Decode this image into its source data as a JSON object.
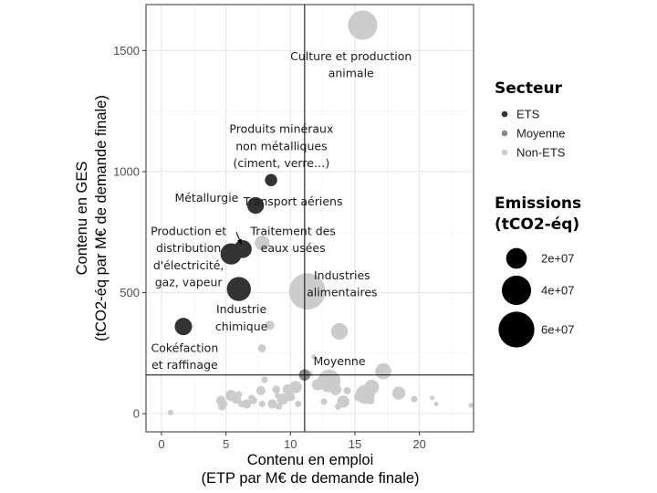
{
  "chart_data": {
    "type": "scatter",
    "xlabel": [
      "Contenu en emploi",
      "(ETP par M€ de demande finale)"
    ],
    "ylabel": [
      "Contenu en GES",
      "(tCO2-éq par M€ de demande finale)"
    ],
    "xlim": [
      -1.2,
      24.2
    ],
    "ylim": [
      -75,
      1690
    ],
    "x_ticks": [
      0,
      5,
      10,
      15,
      20
    ],
    "y_ticks": [
      0,
      500,
      1000,
      1500
    ],
    "x_tick_labels": [
      "0",
      "5",
      "10",
      "15",
      "20"
    ],
    "y_tick_labels": [
      "0",
      "500",
      "1000",
      "1500"
    ],
    "grid": true,
    "reference_lines": {
      "x": 11.1,
      "y": 160
    },
    "legend_position": "right",
    "legend": {
      "color_title": "Secteur",
      "color_entries": [
        {
          "label": "ETS",
          "color": "#333333"
        },
        {
          "label": "Moyenne",
          "color": "#888888"
        },
        {
          "label": "Non-ETS",
          "color": "#cccccc"
        }
      ],
      "size_title": [
        "Emissions",
        "(tCO2-éq)"
      ],
      "size_entries": [
        {
          "label": "2e+07",
          "value": 20000000
        },
        {
          "label": "4e+07",
          "value": 40000000
        },
        {
          "label": "6e+07",
          "value": 60000000
        }
      ]
    },
    "series": [
      {
        "name": "ETS",
        "color": "#333333",
        "points": [
          {
            "x": 8.5,
            "y": 965,
            "size": 7000000
          },
          {
            "x": 7.3,
            "y": 860,
            "size": 13000000
          },
          {
            "x": 6.3,
            "y": 680,
            "size": 15000000
          },
          {
            "x": 5.4,
            "y": 660,
            "size": 21000000
          },
          {
            "x": 6.0,
            "y": 515,
            "size": 27000000
          },
          {
            "x": 1.7,
            "y": 360,
            "size": 14000000
          }
        ]
      },
      {
        "name": "Moyenne",
        "color": "#888888",
        "points": [
          {
            "x": 11.1,
            "y": 160,
            "size": 6000000
          }
        ]
      },
      {
        "name": "Non-ETS",
        "color": "#cccccc",
        "points": [
          {
            "x": 15.6,
            "y": 1605,
            "size": 40000000
          },
          {
            "x": 11.3,
            "y": 505,
            "size": 62000000
          },
          {
            "x": 7.8,
            "y": 705,
            "size": 10000000
          },
          {
            "x": 13.8,
            "y": 340,
            "size": 13000000
          },
          {
            "x": 8.4,
            "y": 365,
            "size": 4000000
          },
          {
            "x": 7.8,
            "y": 270,
            "size": 3000000
          },
          {
            "x": 11.8,
            "y": 235,
            "size": 1000000
          },
          {
            "x": 17.2,
            "y": 175,
            "size": 12000000
          },
          {
            "x": 13.0,
            "y": 135,
            "size": 24000000
          },
          {
            "x": 11.5,
            "y": 165,
            "size": 1500000
          },
          {
            "x": 15.8,
            "y": 80,
            "size": 17000000
          },
          {
            "x": 16.3,
            "y": 110,
            "size": 10000000
          },
          {
            "x": 18.4,
            "y": 85,
            "size": 8000000
          },
          {
            "x": 14.1,
            "y": 50,
            "size": 7000000
          },
          {
            "x": 13.5,
            "y": 100,
            "size": 6000000
          },
          {
            "x": 12.1,
            "y": 120,
            "size": 6000000
          },
          {
            "x": 10.4,
            "y": 110,
            "size": 7000000
          },
          {
            "x": 9.8,
            "y": 100,
            "size": 5000000
          },
          {
            "x": 10.0,
            "y": 70,
            "size": 4000000
          },
          {
            "x": 9.4,
            "y": 60,
            "size": 6000000
          },
          {
            "x": 8.6,
            "y": 40,
            "size": 4000000
          },
          {
            "x": 8.9,
            "y": 100,
            "size": 3000000
          },
          {
            "x": 7.7,
            "y": 95,
            "size": 4000000
          },
          {
            "x": 7.1,
            "y": 55,
            "size": 3000000
          },
          {
            "x": 6.6,
            "y": 40,
            "size": 4000000
          },
          {
            "x": 5.4,
            "y": 75,
            "size": 6000000
          },
          {
            "x": 5.8,
            "y": 60,
            "size": 4000000
          },
          {
            "x": 4.8,
            "y": 40,
            "size": 3000000
          },
          {
            "x": 4.6,
            "y": 55,
            "size": 4000000
          },
          {
            "x": 6.2,
            "y": 40,
            "size": 2000000
          },
          {
            "x": 6.0,
            "y": 80,
            "size": 2000000
          },
          {
            "x": 7.0,
            "y": 65,
            "size": 2000000
          },
          {
            "x": 7.8,
            "y": 40,
            "size": 2000000
          },
          {
            "x": 9.1,
            "y": 30,
            "size": 2000000
          },
          {
            "x": 10.6,
            "y": 40,
            "size": 2000000
          },
          {
            "x": 12.6,
            "y": 50,
            "size": 2000000
          },
          {
            "x": 13.7,
            "y": 30,
            "size": 2000000
          },
          {
            "x": 14.4,
            "y": 95,
            "size": 2500000
          },
          {
            "x": 15.3,
            "y": 70,
            "size": 4000000
          },
          {
            "x": 16.2,
            "y": 55,
            "size": 3000000
          },
          {
            "x": 19.6,
            "y": 60,
            "size": 2000000
          },
          {
            "x": 21.0,
            "y": 65,
            "size": 1000000
          },
          {
            "x": 21.3,
            "y": 40,
            "size": 1000000
          },
          {
            "x": 24.0,
            "y": 35,
            "size": 1000000
          },
          {
            "x": 0.7,
            "y": 5,
            "size": 1500000
          },
          {
            "x": 4.7,
            "y": 30,
            "size": 3000000
          },
          {
            "x": 8.0,
            "y": 140,
            "size": 2000000
          },
          {
            "x": 9.0,
            "y": 75,
            "size": 1500000
          }
        ]
      }
    ],
    "annotations": [
      {
        "lines": [
          "Culture et production",
          "animale"
        ],
        "x": 14.7,
        "y": 1460
      },
      {
        "lines": [
          "Produits minéraux",
          "non métalliques",
          "(ciment, verre…)"
        ],
        "x": 9.3,
        "y": 1160
      },
      {
        "lines": [
          "Métallurgie"
        ],
        "x": 3.5,
        "y": 875
      },
      {
        "lines": [
          "Transport aériens"
        ],
        "x": 10.2,
        "y": 860
      },
      {
        "lines": [
          "Production et",
          "distribution",
          "d'électricité,",
          "gaz, vapeur"
        ],
        "x": 2.1,
        "y": 738
      },
      {
        "lines": [
          "Traitement des",
          "eaux usées"
        ],
        "x": 10.2,
        "y": 738
      },
      {
        "lines": [
          "Industries",
          "alimentaires"
        ],
        "x": 14.0,
        "y": 555
      },
      {
        "lines": [
          "Industrie",
          "chimique"
        ],
        "x": 6.2,
        "y": 415
      },
      {
        "lines": [
          "Cokéfaction",
          "et raffinage"
        ],
        "x": 1.8,
        "y": 255
      },
      {
        "lines": [
          "Moyenne"
        ],
        "x": 13.8,
        "y": 200
      }
    ],
    "arrow": {
      "from": [
        5.8,
        750
      ],
      "to": [
        6.2,
        700
      ]
    }
  }
}
